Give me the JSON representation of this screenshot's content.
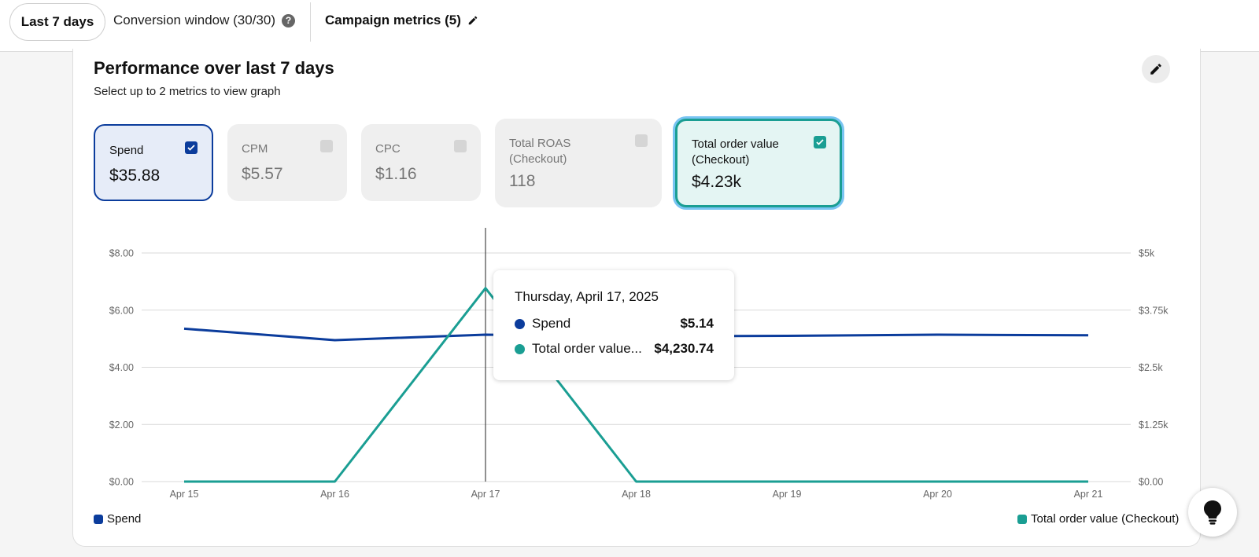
{
  "topbar": {
    "date_range": "Last 7 days",
    "conversion_window": "Conversion window (30/30)",
    "help_glyph": "?",
    "campaign_metrics": "Campaign metrics (5)"
  },
  "panel": {
    "title": "Performance over last 7 days",
    "subtitle": "Select up to 2 metrics to view graph"
  },
  "metrics": [
    {
      "label": "Spend",
      "value": "$35.88",
      "selected": true,
      "color": "#0b3c9c"
    },
    {
      "label": "CPM",
      "value": "$5.57",
      "selected": false
    },
    {
      "label": "CPC",
      "value": "$1.16",
      "selected": false
    },
    {
      "label": "Total ROAS (Checkout)",
      "value": "118",
      "selected": false
    },
    {
      "label": "Total order value (Checkout)",
      "value": "$4.23k",
      "selected": true,
      "color": "#1a9e93"
    }
  ],
  "tooltip": {
    "date": "Thursday, April 17, 2025",
    "rows": [
      {
        "name": "Spend",
        "value": "$5.14",
        "color": "#0b3c9c"
      },
      {
        "name": "Total order value...",
        "value": "$4,230.74",
        "color": "#1a9e93"
      }
    ]
  },
  "legend": {
    "left": "Spend",
    "right": "Total order value (Checkout)"
  },
  "chart_data": {
    "type": "line",
    "categories": [
      "Apr 15",
      "Apr 16",
      "Apr 17",
      "Apr 18",
      "Apr 19",
      "Apr 20",
      "Apr 21"
    ],
    "series": [
      {
        "name": "Spend",
        "axis": "left",
        "color": "#0b3c9c",
        "values": [
          5.35,
          4.95,
          5.14,
          5.08,
          5.1,
          5.14,
          5.12
        ]
      },
      {
        "name": "Total order value (Checkout)",
        "axis": "right",
        "color": "#1a9e93",
        "values": [
          0,
          0,
          4230.74,
          0,
          0,
          0,
          0
        ]
      }
    ],
    "y_left": {
      "ticks": [
        "$0.00",
        "$2.00",
        "$4.00",
        "$6.00",
        "$8.00"
      ],
      "range": [
        0,
        8
      ]
    },
    "y_right": {
      "ticks": [
        "$0.00",
        "$1.25k",
        "$2.5k",
        "$3.75k",
        "$5k"
      ],
      "range": [
        0,
        5000
      ]
    },
    "hover_category": "Apr 17",
    "grid": true
  }
}
